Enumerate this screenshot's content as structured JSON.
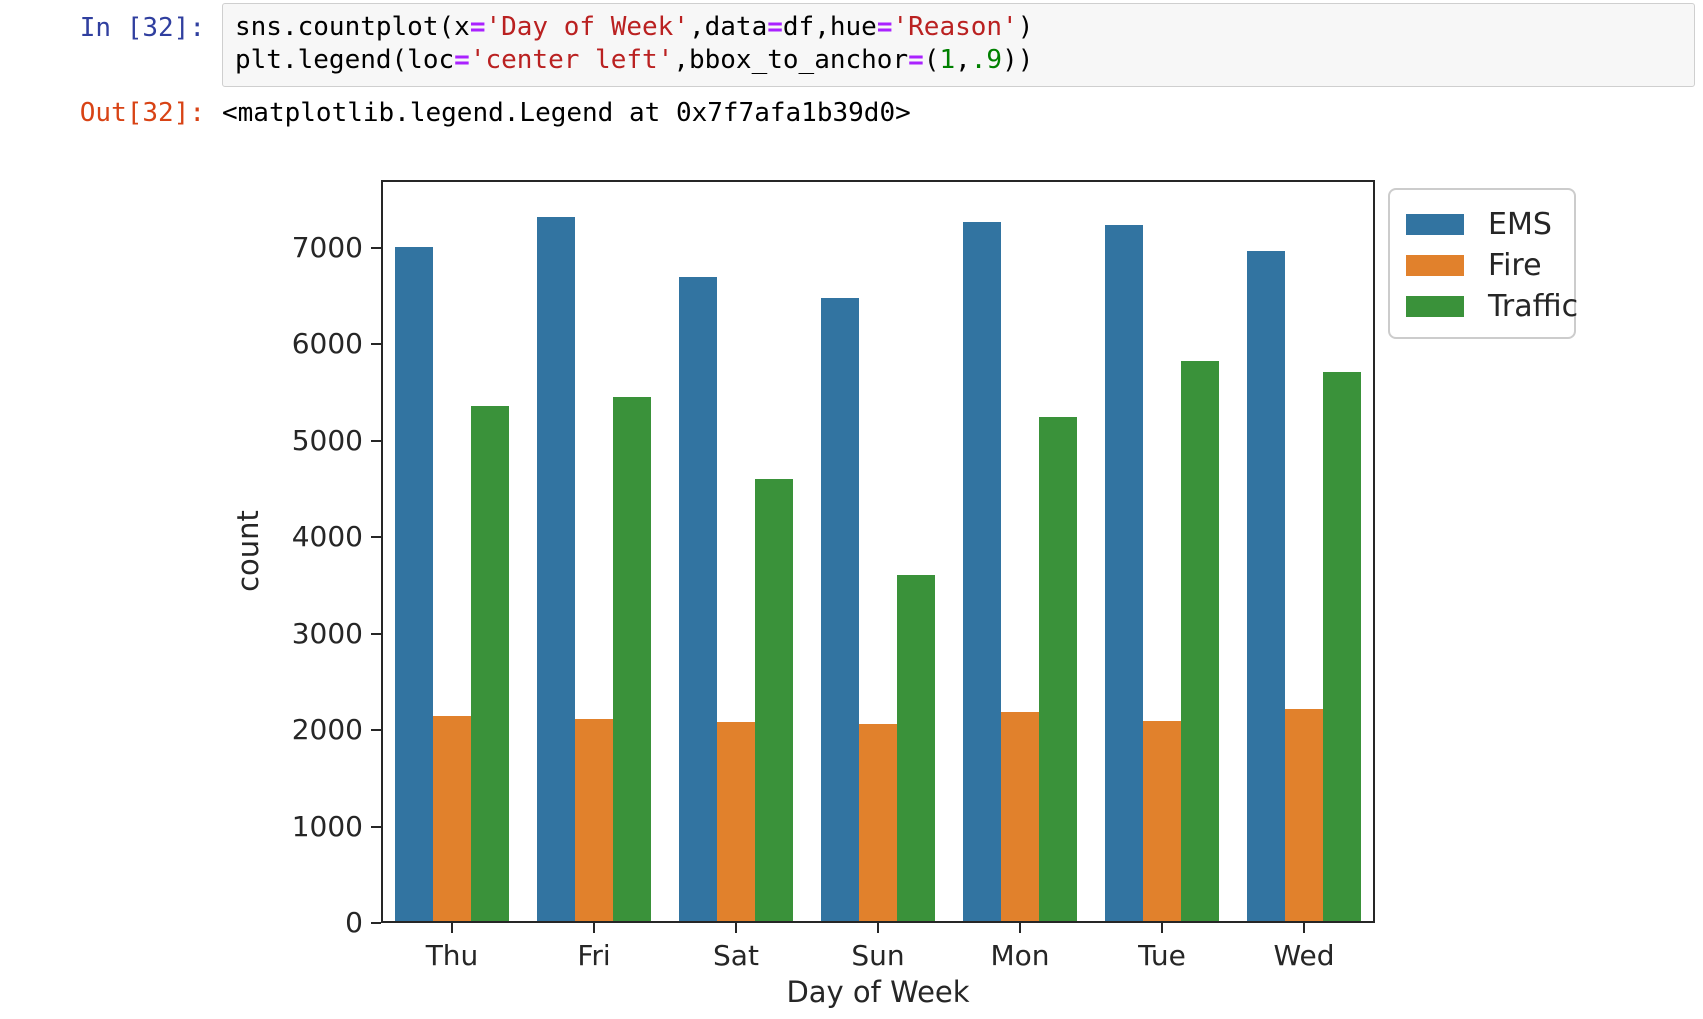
{
  "notebook": {
    "in_prompt": "In [32]:",
    "out_prompt": "Out[32]:",
    "code_lines": [
      [
        {
          "text": "sns.countplot(x",
          "style": "plain"
        },
        {
          "text": "=",
          "style": "op"
        },
        {
          "text": "'Day of Week'",
          "style": "str"
        },
        {
          "text": ",data",
          "style": "plain"
        },
        {
          "text": "=",
          "style": "op"
        },
        {
          "text": "df,hue",
          "style": "plain"
        },
        {
          "text": "=",
          "style": "op"
        },
        {
          "text": "'Reason'",
          "style": "str"
        },
        {
          "text": ")",
          "style": "plain"
        }
      ],
      [
        {
          "text": "plt.legend(loc",
          "style": "plain"
        },
        {
          "text": "=",
          "style": "op"
        },
        {
          "text": "'center left'",
          "style": "str"
        },
        {
          "text": ",bbox_to_anchor",
          "style": "plain"
        },
        {
          "text": "=",
          "style": "op"
        },
        {
          "text": "(",
          "style": "plain"
        },
        {
          "text": "1",
          "style": "num"
        },
        {
          "text": ",",
          "style": "plain"
        },
        {
          "text": ".9",
          "style": "num"
        },
        {
          "text": "))",
          "style": "plain"
        }
      ]
    ],
    "output_text": "<matplotlib.legend.Legend at 0x7f7afa1b39d0>"
  },
  "colors": {
    "in_prompt": "#303F9F",
    "out_prompt": "#D84315",
    "ems_blue": "#3274a1",
    "fire_orange": "#e1812c",
    "traffic_green": "#3a923a",
    "spine": "#262626",
    "input_bg": "#f7f7f7",
    "input_border": "#cfcfcf"
  },
  "chart_data": {
    "type": "bar",
    "title": "",
    "xlabel": "Day of Week",
    "ylabel": "count",
    "categories": [
      "Thu",
      "Fri",
      "Sat",
      "Sun",
      "Mon",
      "Tue",
      "Wed"
    ],
    "series": [
      {
        "name": "EMS",
        "color": "#3274a1",
        "values": [
          7010,
          7320,
          6690,
          6480,
          7260,
          7230,
          6960
        ]
      },
      {
        "name": "Fire",
        "color": "#e1812c",
        "values": [
          2150,
          2110,
          2080,
          2060,
          2190,
          2090,
          2220
        ]
      },
      {
        "name": "Traffic",
        "color": "#3a923a",
        "values": [
          5360,
          5450,
          4600,
          3610,
          5240,
          5820,
          5710
        ]
      }
    ],
    "yticks": [
      0,
      1000,
      2000,
      3000,
      4000,
      5000,
      6000,
      7000
    ],
    "ylim": [
      0,
      7700
    ],
    "grid": false,
    "legend_position": "outside-right-top"
  }
}
